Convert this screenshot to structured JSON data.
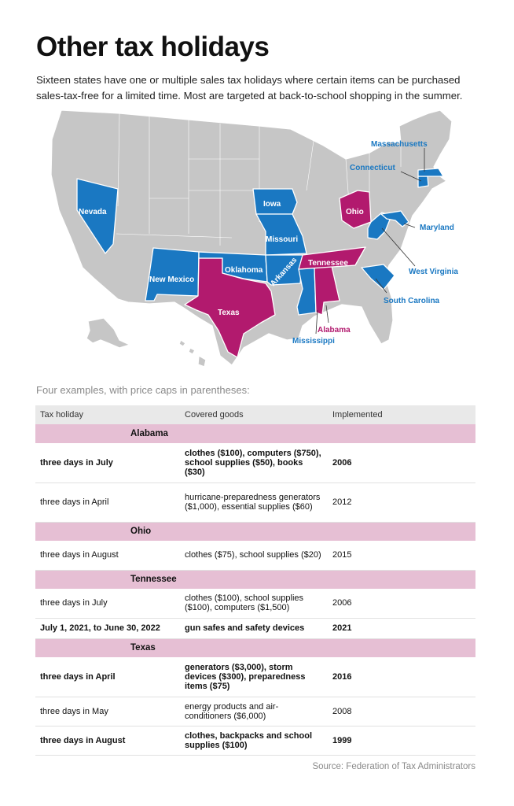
{
  "header": {
    "title": "Other tax holidays",
    "subtitle": "Sixteen states have one or multiple sales tax holidays where certain items can be purchased sales-tax-free for a limited time. Most are targeted at back-to-school shopping in the summer."
  },
  "map": {
    "colors": {
      "base": "#c6c6c6",
      "blue": "#1a78c2",
      "magenta": "#b21a6e",
      "border": "#ffffff"
    },
    "labels": {
      "nevada": "Nevada",
      "new_mexico": "New Mexico",
      "texas": "Texas",
      "oklahoma": "Oklahoma",
      "iowa": "Iowa",
      "missouri": "Missouri",
      "arkansas": "Arkansas",
      "tennessee": "Tennessee",
      "mississippi": "Mississippi",
      "alabama": "Alabama",
      "ohio": "Ohio",
      "west_virginia": "West Virginia",
      "maryland": "Maryland",
      "connecticut": "Connecticut",
      "massachusetts": "Massachusetts",
      "south_carolina": "South Carolina"
    }
  },
  "table": {
    "caption": "Four examples, with price caps in parentheses:",
    "headers": [
      "Tax holiday",
      "Covered goods",
      "Implemented"
    ],
    "groups": [
      {
        "state": "Alabama",
        "rows": [
          {
            "holiday": "three days in July",
            "goods": "clothes ($100), computers ($750), school supplies ($50), books ($30)",
            "year": "2006",
            "bold": true
          },
          {
            "holiday": "three days in April",
            "goods": "hurricane-preparedness generators ($1,000), essential supplies ($60)",
            "year": "2012",
            "bold": false
          }
        ]
      },
      {
        "state": "Ohio",
        "rows": [
          {
            "holiday": "three days in August",
            "goods": "clothes ($75), school supplies ($20)",
            "year": "2015",
            "bold": false
          }
        ]
      },
      {
        "state": "Tennessee",
        "rows": [
          {
            "holiday": "three days in July",
            "goods": "clothes ($100), school supplies ($100), computers ($1,500)",
            "year": "2006",
            "bold": false
          },
          {
            "holiday": "July 1, 2021, to June 30, 2022",
            "goods": "gun safes and safety devices",
            "year": "2021",
            "bold": true
          }
        ]
      },
      {
        "state": "Texas",
        "rows": [
          {
            "holiday": "three days in April",
            "goods": "generators ($3,000), storm devices ($300), preparedness items ($75)",
            "year": "2016",
            "bold": true
          },
          {
            "holiday": "three days in May",
            "goods": "energy products and air-conditioners ($6,000)",
            "year": "2008",
            "bold": false
          },
          {
            "holiday": "three days in August",
            "goods": "clothes, backpacks and school supplies ($100)",
            "year": "1999",
            "bold": true
          }
        ]
      }
    ]
  },
  "source": "Source: Federation of Tax Administrators"
}
